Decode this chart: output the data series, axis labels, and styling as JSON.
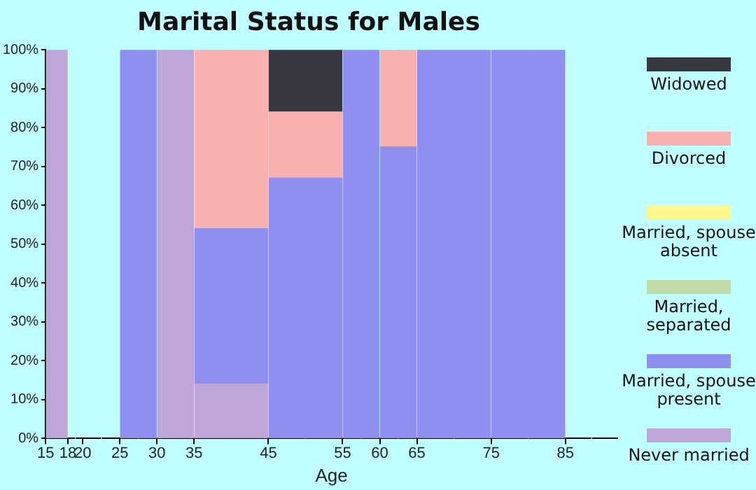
{
  "chart_data": {
    "type": "bar",
    "title": "Marital Status for Males",
    "xlabel": "Age",
    "stacked": true,
    "legend": "right",
    "grid": false,
    "x": [
      16.5,
      19,
      22.5,
      27.5,
      32.5,
      40,
      50,
      57.5,
      62.5,
      70,
      80,
      88.5
    ],
    "xlim": [
      15,
      92
    ],
    "xticks": [
      15,
      18,
      20,
      25,
      30,
      35,
      45,
      55,
      60,
      65,
      75,
      85
    ],
    "ylim": [
      0,
      100
    ],
    "yticks": [
      {
        "value": 0,
        "label": "0%"
      },
      {
        "value": 10,
        "label": "10%"
      },
      {
        "value": 20,
        "label": "20%"
      },
      {
        "value": 30,
        "label": "30%"
      },
      {
        "value": 40,
        "label": "40%"
      },
      {
        "value": 50,
        "label": "50%"
      },
      {
        "value": 60,
        "label": "60%"
      },
      {
        "value": 70,
        "label": "70%"
      },
      {
        "value": 80,
        "label": "80%"
      },
      {
        "value": 90,
        "label": "90%"
      },
      {
        "value": 100,
        "label": "100%"
      }
    ],
    "series": [
      {
        "name": "Never married",
        "color": "#bfa6d8",
        "values": [
          100,
          0,
          0,
          0,
          100,
          14,
          0,
          0,
          0,
          0,
          0,
          0
        ]
      },
      {
        "name": "Married, spouse present",
        "color": "#8f8ff0",
        "values": [
          0,
          0,
          0,
          100,
          0,
          40,
          67,
          100,
          75,
          100,
          100,
          0
        ]
      },
      {
        "name": "Married, separated",
        "color": "#c0dba8",
        "values": [
          0,
          0,
          0,
          0,
          0,
          0,
          0,
          0,
          0,
          0,
          0,
          0
        ]
      },
      {
        "name": "Married, spouse absent",
        "color": "#fff68f",
        "values": [
          0,
          0,
          0,
          0,
          0,
          0,
          0,
          0,
          0,
          0,
          0,
          0
        ]
      },
      {
        "name": "Divorced",
        "color": "#f8b0b0",
        "values": [
          0,
          0,
          0,
          0,
          0,
          46,
          17,
          0,
          25,
          0,
          0,
          0
        ]
      },
      {
        "name": "Widowed",
        "color": "#37373f",
        "values": [
          0,
          0,
          0,
          0,
          0,
          0,
          16,
          0,
          0,
          0,
          0,
          0
        ]
      }
    ]
  }
}
